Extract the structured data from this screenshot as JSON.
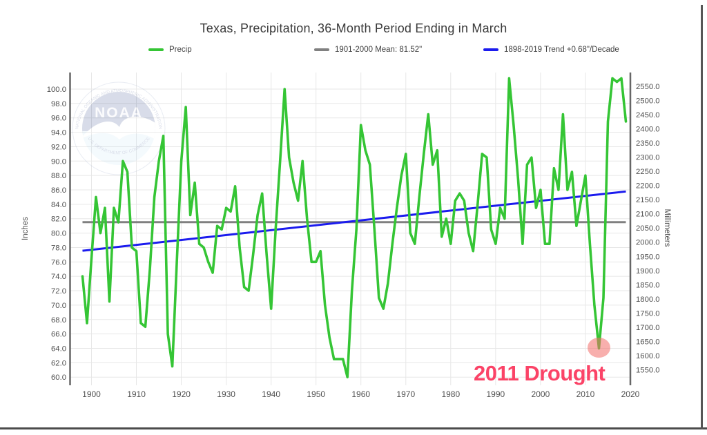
{
  "chart": {
    "title": "Texas, Precipitation, 36-Month Period Ending in March",
    "annotation": {
      "text": "2011 Drought",
      "color": "#fb4367",
      "highlight_year": 2013,
      "highlight_value": 64
    },
    "watermark": {
      "name": "noaa-logo",
      "text_top": "NATIONAL OCEANIC AND ATMOSPHERIC ADMINISTRATION",
      "text_bottom": "U.S. DEPARTMENT OF COMMERCE",
      "acronym": "NOAA"
    }
  },
  "legend": {
    "items": [
      {
        "label": "Precip",
        "color": "#35c535"
      },
      {
        "label": "1901-2000 Mean: 81.52\"",
        "color": "#808080"
      },
      {
        "label": "1898-2019 Trend +0.68\"/Decade",
        "color": "#1b1bee"
      }
    ]
  },
  "axes": {
    "y_left_label": "Inches",
    "y_right_label": "Millimeters",
    "y_left_ticks": [
      "100.0",
      "98.0",
      "96.0",
      "94.0",
      "92.0",
      "90.0",
      "88.0",
      "86.0",
      "84.0",
      "82.0",
      "80.0",
      "78.0",
      "76.0",
      "74.0",
      "72.0",
      "70.0",
      "68.0",
      "66.0",
      "64.0",
      "62.0",
      "60.0"
    ],
    "y_right_ticks": [
      "2550.0",
      "2500.0",
      "2450.0",
      "2400.0",
      "2350.0",
      "2300.0",
      "2250.0",
      "2200.0",
      "2150.0",
      "2100.0",
      "2050.0",
      "2000.0",
      "1950.0",
      "1900.0",
      "1850.0",
      "1800.0",
      "1750.0",
      "1700.0",
      "1650.0",
      "1600.0",
      "1550.0"
    ],
    "x_ticks": [
      "1900",
      "1910",
      "1920",
      "1930",
      "1940",
      "1950",
      "1960",
      "1970",
      "1980",
      "1990",
      "2000",
      "2010",
      "2020"
    ]
  },
  "chart_data": {
    "type": "line",
    "title": "Texas, Precipitation, 36-Month Period Ending in March",
    "xlabel": "",
    "ylabel_left": "Inches",
    "ylabel_right": "Millimeters",
    "x_range": [
      1898,
      2020
    ],
    "ylim_left": [
      60,
      100
    ],
    "ylim_right": [
      1550,
      2550
    ],
    "grid": true,
    "legend_position": "top",
    "start_year": 1898,
    "series": [
      {
        "name": "Precip",
        "kind": "data",
        "color": "#35c535",
        "values": [
          74,
          67.5,
          76.5,
          85,
          80,
          83.5,
          70.5,
          83.5,
          81.5,
          90,
          88.5,
          78,
          77.5,
          67.5,
          67,
          75,
          85,
          90,
          93.5,
          66,
          61.5,
          76,
          90,
          97.5,
          82.5,
          87,
          78.5,
          78,
          76,
          74.5,
          81,
          80.5,
          83.5,
          83,
          86.5,
          78,
          72.5,
          72,
          77,
          82.5,
          85.5,
          77,
          69.5,
          80.5,
          90,
          100,
          90.5,
          87,
          84.5,
          90,
          82,
          76,
          76,
          77.5,
          70,
          65.5,
          62.5,
          62.5,
          62.5,
          60,
          72,
          80.5,
          95,
          91.5,
          89.5,
          80.5,
          71,
          69.5,
          73,
          78.5,
          83.5,
          88,
          91,
          80,
          78.5,
          85,
          91,
          96.5,
          89.5,
          91.5,
          79.5,
          82,
          78.5,
          84.5,
          85.5,
          84.5,
          80,
          77.5,
          84,
          91,
          90.5,
          80.5,
          78.5,
          83.5,
          82,
          101.5,
          95,
          87.5,
          78.5,
          89.5,
          90.5,
          83.5,
          86,
          78.5,
          78.5,
          89,
          86,
          96.5,
          86,
          88.5,
          81,
          84.5,
          88,
          78.5,
          70,
          64,
          71,
          95.5,
          101.5,
          101,
          101.5,
          95.5
        ]
      },
      {
        "name": "1901-2000 Mean: 81.52\"",
        "kind": "mean-line",
        "color": "#808080",
        "value": 81.52
      },
      {
        "name": "1898-2019 Trend +0.68\"/Decade",
        "kind": "trend-line",
        "color": "#1b1bee",
        "slope_per_decade": 0.68,
        "start": {
          "year": 1898,
          "value": 77.55
        },
        "end": {
          "year": 2019,
          "value": 85.78
        }
      }
    ]
  }
}
